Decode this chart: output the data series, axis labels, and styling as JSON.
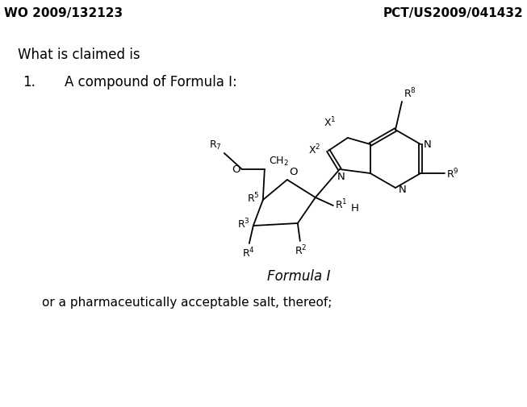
{
  "bg_color": "#ffffff",
  "header_left": "WO 2009/132123",
  "header_right": "PCT/US2009/041432",
  "header_fontsize": 11,
  "header_bold": true,
  "claim_text": "What is claimed is",
  "claim_fontsize": 12,
  "item_number": "1.",
  "item_text": "A compound of Formula I:",
  "item_fontsize": 12,
  "formula_label": "Formula I",
  "formula_fontsize": 12,
  "footer_text": "or a pharmaceutically acceptable salt, thereof;",
  "footer_fontsize": 11,
  "structure_color": "#000000",
  "line_width": 1.3
}
